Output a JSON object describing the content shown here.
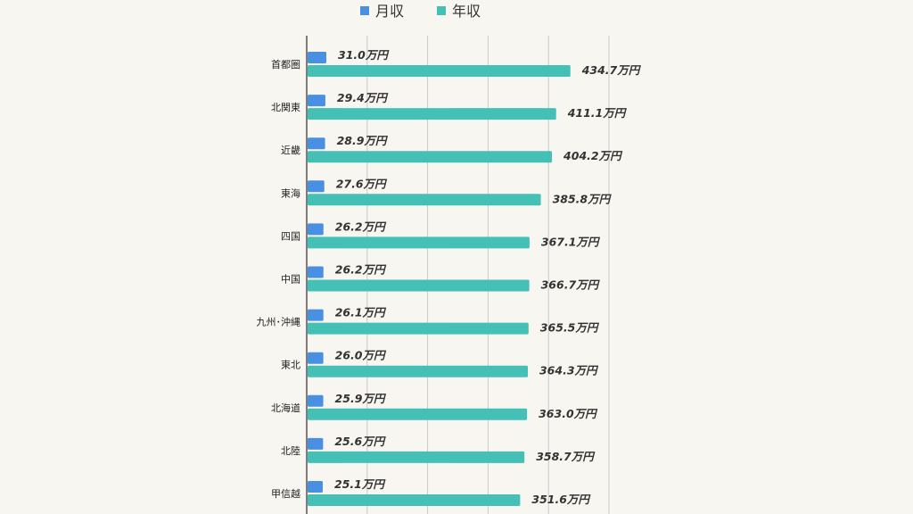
{
  "legend": [
    {
      "label": "月収",
      "color": "#4a90e2"
    },
    {
      "label": "年収",
      "color": "#45c0b6"
    }
  ],
  "chart_data": {
    "type": "bar",
    "orientation": "horizontal",
    "categories": [
      "首都圏",
      "北関東",
      "近畿",
      "東海",
      "四国",
      "中国",
      "九州･沖縄",
      "東北",
      "北海道",
      "北陸",
      "甲信越"
    ],
    "series": [
      {
        "name": "月収",
        "color": "#4a90e2",
        "values": [
          31.0,
          29.4,
          28.9,
          27.6,
          26.2,
          26.2,
          26.1,
          26.0,
          25.9,
          25.6,
          25.1
        ],
        "labels": [
          "31.0万円",
          "29.4万円",
          "28.9万円",
          "27.6万円",
          "26.2万円",
          "26.2万円",
          "26.1万円",
          "26.0万円",
          "25.9万円",
          "25.6万円",
          "25.1万円"
        ]
      },
      {
        "name": "年収",
        "color": "#45c0b6",
        "values": [
          434.7,
          411.1,
          404.2,
          385.8,
          367.1,
          366.7,
          365.5,
          364.3,
          363.0,
          358.7,
          351.6
        ],
        "labels": [
          "434.7万円",
          "411.1万円",
          "404.2万円",
          "385.8万円",
          "367.1万円",
          "366.7万円",
          "365.5万円",
          "364.3万円",
          "363.0万円",
          "358.7万円",
          "351.6万円"
        ]
      }
    ],
    "xlim": [
      0,
      500
    ],
    "gridlines": true,
    "legend_position": "top-center"
  }
}
